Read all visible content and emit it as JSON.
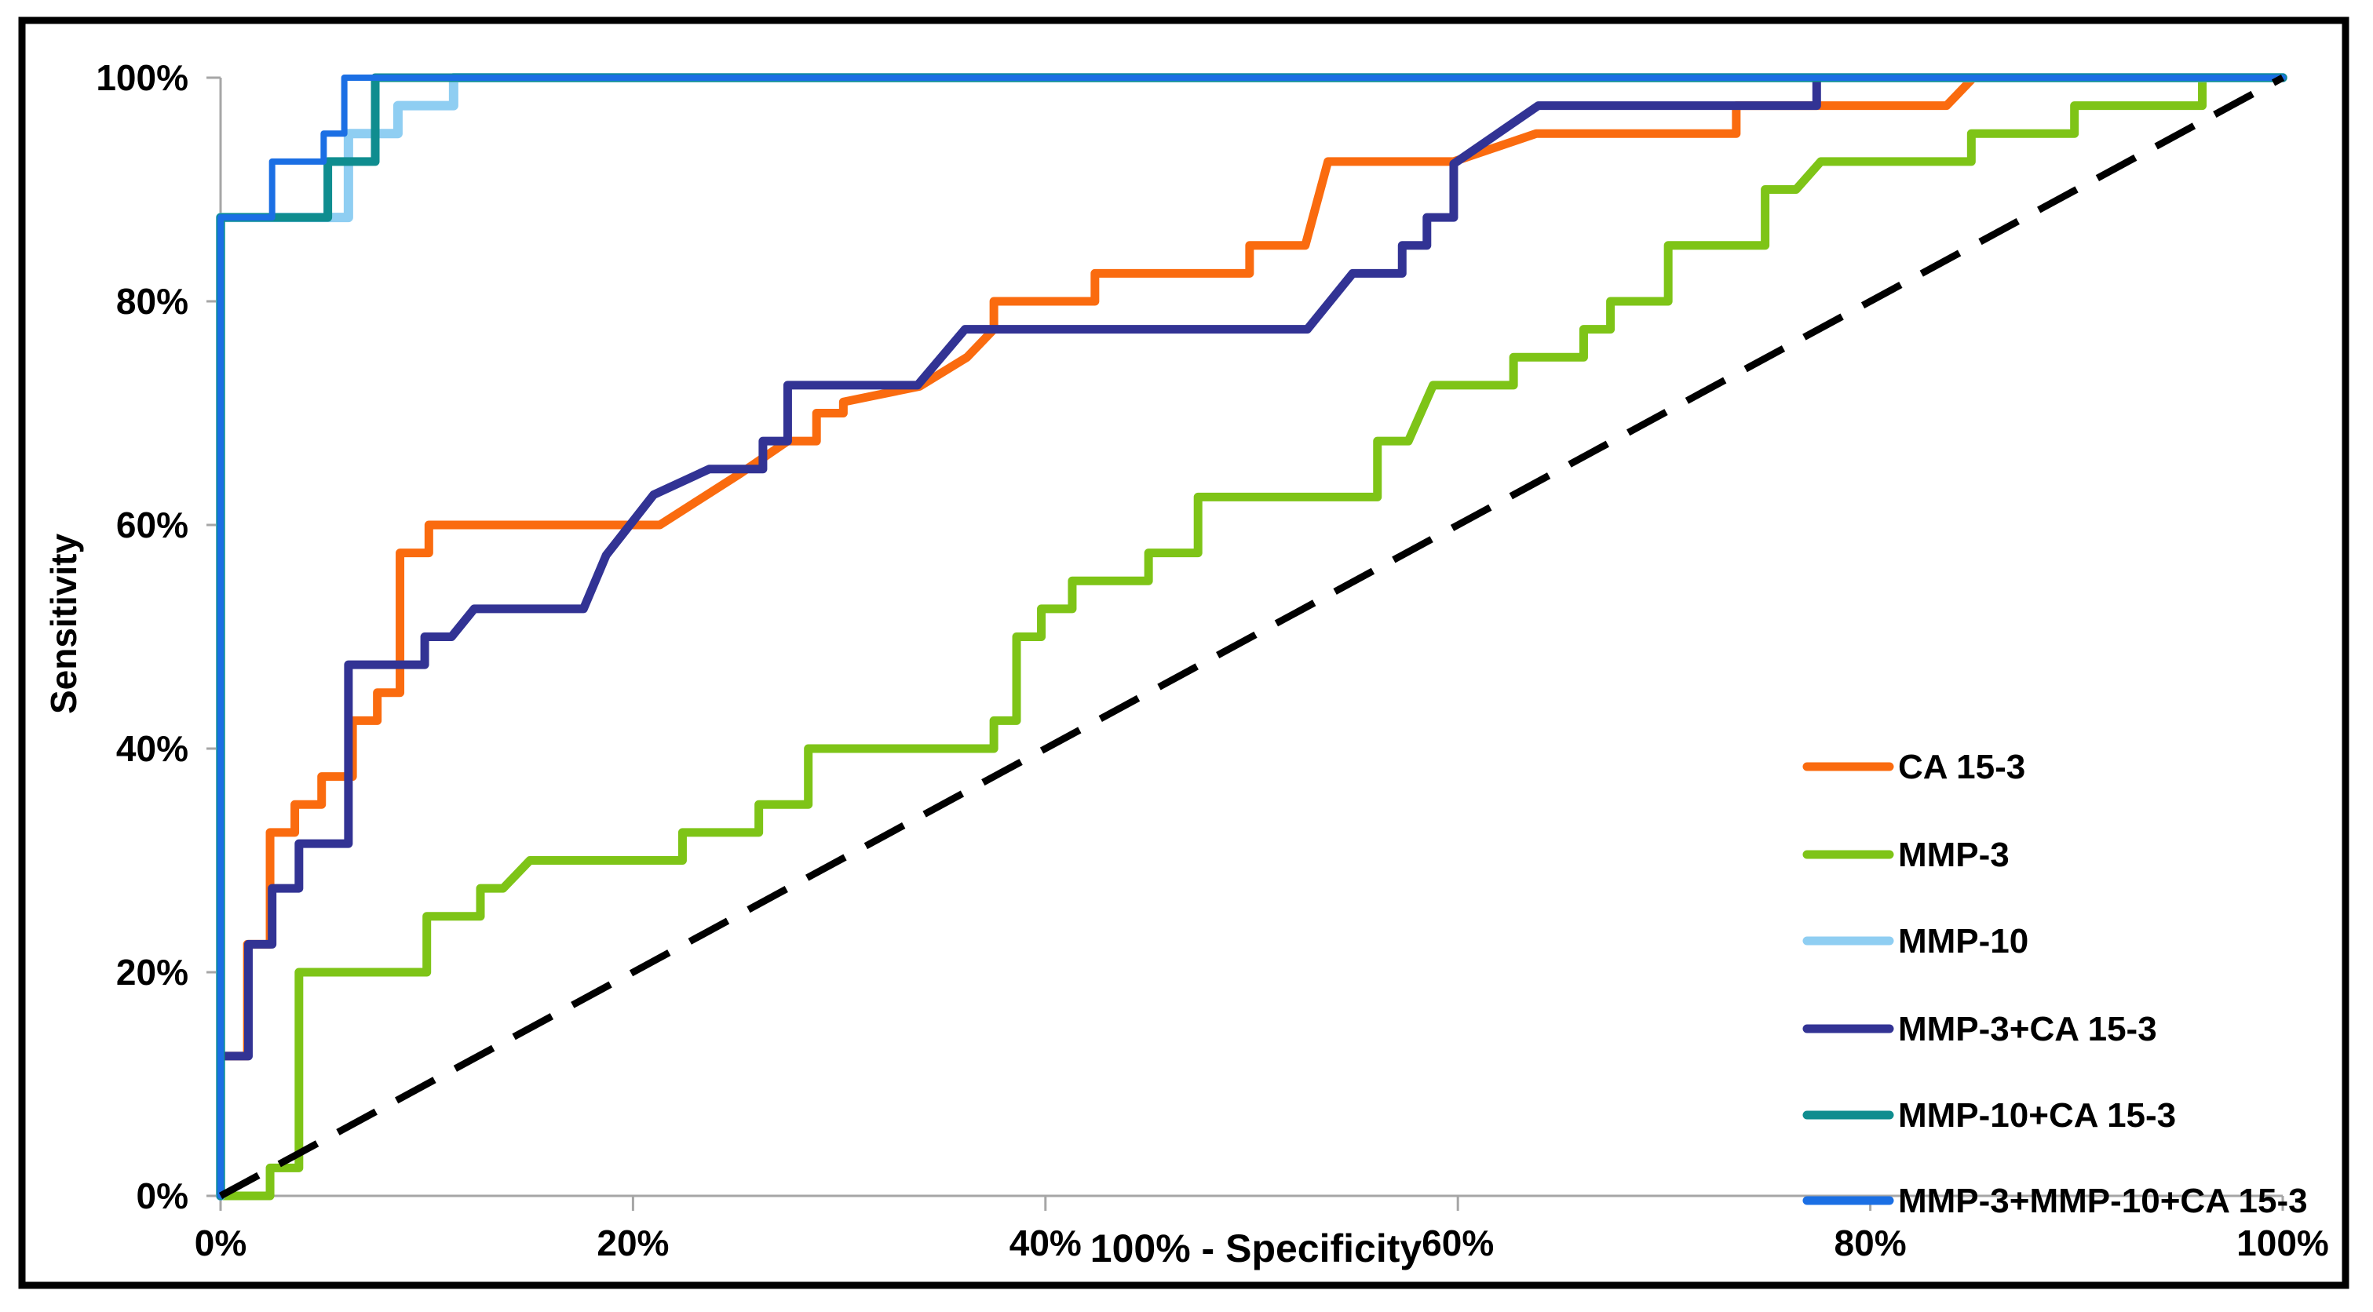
{
  "chart_data": {
    "type": "line",
    "subtype": "roc-step-curves",
    "title": "",
    "xlabel": "100% - Specificity",
    "ylabel": "Sensitivity",
    "xlim": [
      0,
      100
    ],
    "ylim": [
      0,
      100
    ],
    "x_ticks": [
      0,
      20,
      40,
      60,
      80,
      100
    ],
    "y_ticks": [
      0,
      20,
      40,
      60,
      80,
      100
    ],
    "tick_suffix": "%",
    "grid": false,
    "point_units": "percent",
    "axis_color": "#A6A6A6",
    "frame_color": "#000000",
    "background_color": "#FFFFFF",
    "legend_position": "inside-right",
    "reference_line": {
      "name": "chance-diagonal",
      "style": "dashed",
      "color": "#000000",
      "points": [
        [
          0,
          0
        ],
        [
          100,
          100
        ]
      ]
    },
    "series": [
      {
        "name": "CA 15-3",
        "color": "#FA6B0F",
        "stroke_width": 11,
        "points": [
          [
            0,
            0
          ],
          [
            0,
            12.5
          ],
          [
            1.3,
            12.5
          ],
          [
            1.3,
            22.5
          ],
          [
            2.4,
            22.5
          ],
          [
            2.4,
            32.5
          ],
          [
            3.6,
            32.5
          ],
          [
            3.6,
            35
          ],
          [
            4.9,
            35
          ],
          [
            4.9,
            37.5
          ],
          [
            6.4,
            37.5
          ],
          [
            6.4,
            42.5
          ],
          [
            7.6,
            42.5
          ],
          [
            7.6,
            45
          ],
          [
            8.7,
            45
          ],
          [
            8.7,
            57.5
          ],
          [
            10.1,
            57.5
          ],
          [
            10.1,
            60
          ],
          [
            21.3,
            60
          ],
          [
            25.2,
            64.6
          ],
          [
            27.5,
            67.5
          ],
          [
            28.9,
            67.5
          ],
          [
            28.9,
            70
          ],
          [
            30.2,
            70
          ],
          [
            30.2,
            71
          ],
          [
            33.9,
            72.4
          ],
          [
            36.2,
            75
          ],
          [
            37.5,
            77.5
          ],
          [
            37.5,
            80
          ],
          [
            42.4,
            80
          ],
          [
            42.4,
            82.5
          ],
          [
            49.9,
            82.5
          ],
          [
            49.9,
            85
          ],
          [
            52.6,
            85
          ],
          [
            53.7,
            92.5
          ],
          [
            59.8,
            92.5
          ],
          [
            63.8,
            95
          ],
          [
            73.5,
            95
          ],
          [
            73.5,
            97.5
          ],
          [
            83.7,
            97.5
          ],
          [
            85,
            100
          ],
          [
            100,
            100
          ]
        ]
      },
      {
        "name": "MMP-3",
        "color": "#7EC417",
        "stroke_width": 11,
        "points": [
          [
            0,
            0
          ],
          [
            2.4,
            0
          ],
          [
            2.4,
            2.5
          ],
          [
            3.8,
            2.5
          ],
          [
            3.8,
            20
          ],
          [
            10,
            20
          ],
          [
            10,
            25
          ],
          [
            12.6,
            25
          ],
          [
            12.6,
            27.5
          ],
          [
            13.7,
            27.5
          ],
          [
            15,
            30
          ],
          [
            22.4,
            30
          ],
          [
            22.4,
            32.5
          ],
          [
            26.1,
            32.5
          ],
          [
            26.1,
            35
          ],
          [
            28.5,
            35
          ],
          [
            28.5,
            40
          ],
          [
            37.5,
            40
          ],
          [
            37.5,
            42.5
          ],
          [
            38.6,
            42.5
          ],
          [
            38.6,
            50
          ],
          [
            39.8,
            50
          ],
          [
            39.8,
            52.5
          ],
          [
            41.3,
            52.5
          ],
          [
            41.3,
            55
          ],
          [
            45,
            55
          ],
          [
            45,
            57.5
          ],
          [
            47.4,
            57.5
          ],
          [
            47.4,
            62.5
          ],
          [
            56.1,
            62.5
          ],
          [
            56.1,
            67.5
          ],
          [
            57.6,
            67.5
          ],
          [
            58.8,
            72.5
          ],
          [
            62.7,
            72.5
          ],
          [
            62.7,
            75
          ],
          [
            66.1,
            75
          ],
          [
            66.1,
            77.5
          ],
          [
            67.4,
            77.5
          ],
          [
            67.4,
            80
          ],
          [
            70.2,
            80
          ],
          [
            70.2,
            85
          ],
          [
            74.9,
            85
          ],
          [
            74.9,
            90
          ],
          [
            76.4,
            90
          ],
          [
            77.6,
            92.5
          ],
          [
            84.9,
            92.5
          ],
          [
            84.9,
            95
          ],
          [
            89.9,
            95
          ],
          [
            89.9,
            97.5
          ],
          [
            96.1,
            97.5
          ],
          [
            96.1,
            100
          ],
          [
            100,
            100
          ]
        ]
      },
      {
        "name": "MMP-10",
        "color": "#8FCEF2",
        "stroke_width": 12,
        "points": [
          [
            0,
            0
          ],
          [
            0,
            87.5
          ],
          [
            6.2,
            87.5
          ],
          [
            6.2,
            95
          ],
          [
            8.6,
            95
          ],
          [
            8.6,
            97.5
          ],
          [
            11.3,
            97.5
          ],
          [
            11.3,
            100
          ],
          [
            100,
            100
          ]
        ]
      },
      {
        "name": "MMP-3+CA 15-3",
        "color": "#323394",
        "stroke_width": 11,
        "points": [
          [
            0,
            0
          ],
          [
            0,
            12.5
          ],
          [
            1.35,
            12.5
          ],
          [
            1.35,
            22.5
          ],
          [
            2.5,
            22.5
          ],
          [
            2.5,
            27.5
          ],
          [
            3.8,
            27.5
          ],
          [
            3.8,
            31.5
          ],
          [
            6.2,
            31.5
          ],
          [
            6.2,
            47.5
          ],
          [
            9.9,
            47.5
          ],
          [
            9.9,
            50
          ],
          [
            11.2,
            50
          ],
          [
            12.3,
            52.5
          ],
          [
            17.6,
            52.5
          ],
          [
            18.7,
            57.3
          ],
          [
            21,
            62.7
          ],
          [
            23.7,
            65
          ],
          [
            26.3,
            65
          ],
          [
            26.3,
            67.5
          ],
          [
            27.5,
            67.5
          ],
          [
            27.5,
            72.5
          ],
          [
            33.8,
            72.5
          ],
          [
            36.1,
            77.5
          ],
          [
            52.7,
            77.5
          ],
          [
            54.9,
            82.5
          ],
          [
            57.3,
            82.5
          ],
          [
            57.3,
            85
          ],
          [
            58.5,
            85
          ],
          [
            58.5,
            87.5
          ],
          [
            59.8,
            87.5
          ],
          [
            59.8,
            92.3
          ],
          [
            63.9,
            97.5
          ],
          [
            77.4,
            97.5
          ],
          [
            77.4,
            100
          ],
          [
            100,
            100
          ]
        ]
      },
      {
        "name": "MMP-10+CA 15-3",
        "color": "#0F8D8F",
        "stroke_width": 11,
        "points": [
          [
            0,
            0
          ],
          [
            0,
            87.5
          ],
          [
            5.2,
            87.5
          ],
          [
            5.2,
            92.5
          ],
          [
            7.5,
            92.5
          ],
          [
            7.5,
            100
          ],
          [
            100,
            100
          ]
        ]
      },
      {
        "name": "MMP-3+MMP-10+CA 15-3",
        "color": "#1B6FE4",
        "stroke_width": 8,
        "points": [
          [
            0,
            0
          ],
          [
            0,
            87.5
          ],
          [
            2.5,
            87.5
          ],
          [
            2.5,
            92.5
          ],
          [
            5,
            92.5
          ],
          [
            5,
            95
          ],
          [
            6,
            95
          ],
          [
            6,
            100
          ],
          [
            100,
            100
          ]
        ]
      }
    ],
    "legend": {
      "items": [
        {
          "label": "CA 15-3",
          "color": "#FA6B0F"
        },
        {
          "label": "MMP-3",
          "color": "#7EC417"
        },
        {
          "label": "MMP-10",
          "color": "#8FCEF2"
        },
        {
          "label": "MMP-3+CA 15-3",
          "color": "#323394"
        },
        {
          "label": "MMP-10+CA 15-3",
          "color": "#0F8D8F"
        },
        {
          "label": "MMP-3+MMP-10+CA 15-3",
          "color": "#1B6FE4"
        }
      ]
    }
  }
}
